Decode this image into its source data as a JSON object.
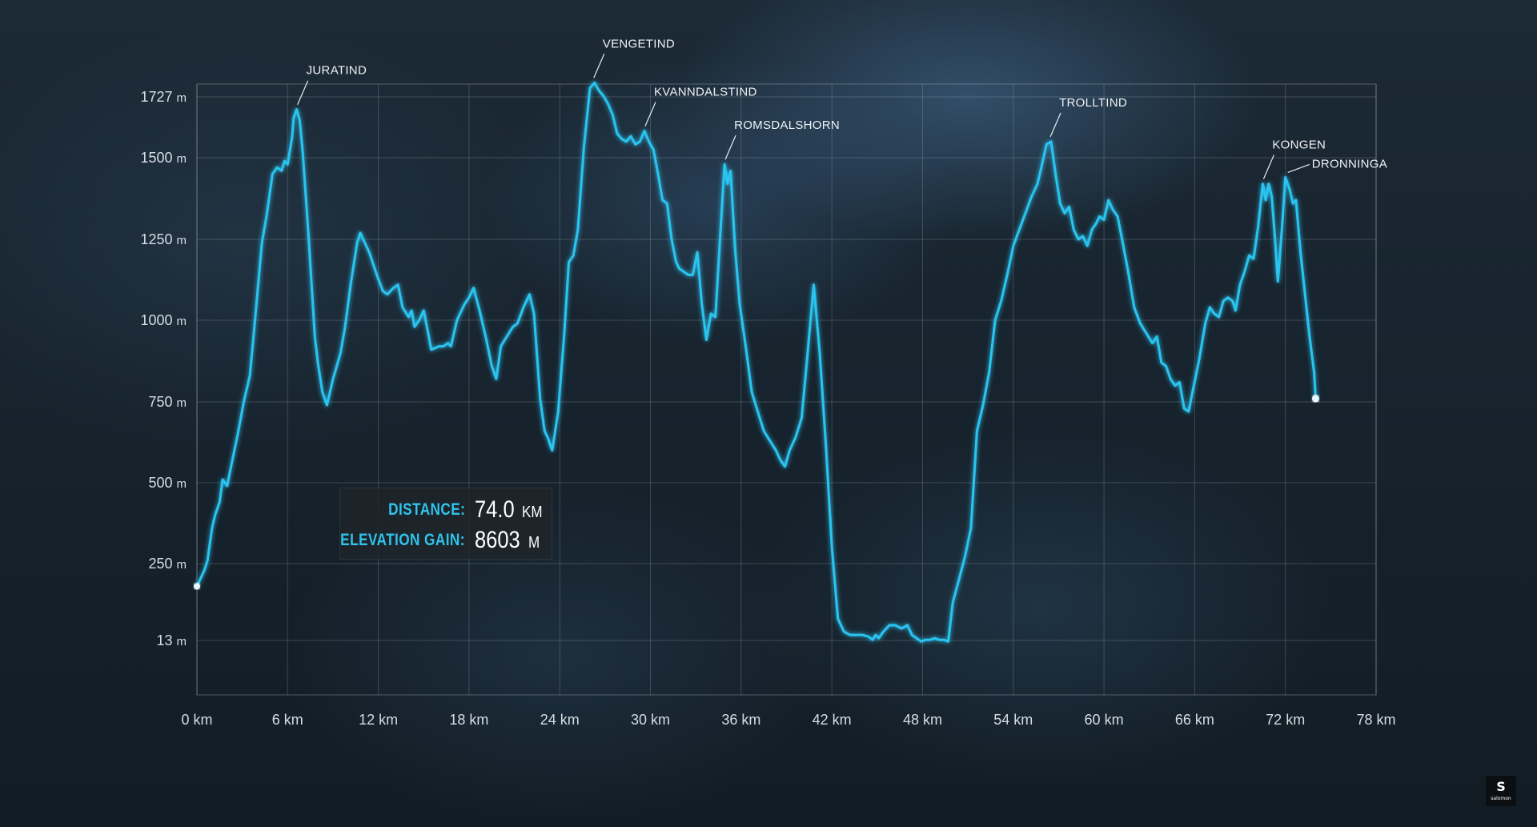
{
  "chart_data": {
    "type": "line",
    "title": "",
    "xlabel": "",
    "ylabel": "",
    "x_ticks": [
      "0 km",
      "6 km",
      "12 km",
      "18 km",
      "24 km",
      "30 km",
      "36 km",
      "42 km",
      "48 km",
      "54 km",
      "60 km",
      "66 km",
      "72 km",
      "78 km"
    ],
    "y_ticks": [
      {
        "value": 1727,
        "num": "1727",
        "unit": "m"
      },
      {
        "value": 1500,
        "num": "1500",
        "unit": "m"
      },
      {
        "value": 1250,
        "num": "1250",
        "unit": "m"
      },
      {
        "value": 1000,
        "num": "1000",
        "unit": "m"
      },
      {
        "value": 750,
        "num": "750",
        "unit": "m"
      },
      {
        "value": 500,
        "num": "500",
        "unit": "m"
      },
      {
        "value": 250,
        "num": "250",
        "unit": "m"
      },
      {
        "value": 13,
        "num": "13",
        "unit": "m"
      }
    ],
    "grid": true,
    "line_color": "#2cc4f0",
    "series": [
      {
        "name": "",
        "points": [
          [
            0,
            180
          ],
          [
            0.5,
            230
          ],
          [
            0.7,
            260
          ],
          [
            1.0,
            360
          ],
          [
            1.2,
            400
          ],
          [
            1.5,
            440
          ],
          [
            1.7,
            510
          ],
          [
            2.0,
            490
          ],
          [
            2.3,
            560
          ],
          [
            2.7,
            650
          ],
          [
            3.1,
            750
          ],
          [
            3.5,
            830
          ],
          [
            3.8,
            980
          ],
          [
            4.3,
            1240
          ],
          [
            4.6,
            1320
          ],
          [
            5.0,
            1450
          ],
          [
            5.3,
            1470
          ],
          [
            5.6,
            1460
          ],
          [
            5.8,
            1490
          ],
          [
            6.0,
            1480
          ],
          [
            6.3,
            1580
          ],
          [
            6.4,
            1650
          ],
          [
            6.6,
            1680
          ],
          [
            6.8,
            1640
          ],
          [
            7.0,
            1520
          ],
          [
            7.4,
            1250
          ],
          [
            7.8,
            950
          ],
          [
            8.0,
            870
          ],
          [
            8.3,
            780
          ],
          [
            8.6,
            740
          ],
          [
            9.0,
            820
          ],
          [
            9.5,
            900
          ],
          [
            9.8,
            980
          ],
          [
            10.2,
            1120
          ],
          [
            10.6,
            1240
          ],
          [
            10.8,
            1270
          ],
          [
            11.0,
            1250
          ],
          [
            11.4,
            1210
          ],
          [
            11.9,
            1140
          ],
          [
            12.3,
            1090
          ],
          [
            12.6,
            1080
          ],
          [
            13.0,
            1100
          ],
          [
            13.3,
            1110
          ],
          [
            13.6,
            1040
          ],
          [
            14.0,
            1010
          ],
          [
            14.2,
            1030
          ],
          [
            14.4,
            980
          ],
          [
            14.7,
            1000
          ],
          [
            15.0,
            1030
          ],
          [
            15.3,
            960
          ],
          [
            15.5,
            910
          ],
          [
            16.0,
            920
          ],
          [
            16.3,
            920
          ],
          [
            16.6,
            930
          ],
          [
            16.8,
            920
          ],
          [
            17.2,
            1000
          ],
          [
            17.7,
            1050
          ],
          [
            18.0,
            1070
          ],
          [
            18.3,
            1100
          ],
          [
            18.7,
            1030
          ],
          [
            19.1,
            950
          ],
          [
            19.5,
            860
          ],
          [
            19.8,
            820
          ],
          [
            20.1,
            920
          ],
          [
            20.5,
            950
          ],
          [
            20.9,
            980
          ],
          [
            21.2,
            990
          ],
          [
            21.6,
            1040
          ],
          [
            22.0,
            1080
          ],
          [
            22.3,
            1020
          ],
          [
            22.7,
            760
          ],
          [
            23.0,
            660
          ],
          [
            23.2,
            640
          ],
          [
            23.5,
            600
          ],
          [
            23.9,
            720
          ],
          [
            24.3,
            960
          ],
          [
            24.6,
            1180
          ],
          [
            24.9,
            1200
          ],
          [
            25.2,
            1280
          ],
          [
            25.6,
            1540
          ],
          [
            26.0,
            1760
          ],
          [
            26.3,
            1780
          ],
          [
            26.6,
            1750
          ],
          [
            26.9,
            1730
          ],
          [
            27.2,
            1700
          ],
          [
            27.5,
            1660
          ],
          [
            27.8,
            1590
          ],
          [
            28.1,
            1570
          ],
          [
            28.4,
            1560
          ],
          [
            28.7,
            1580
          ],
          [
            29.0,
            1550
          ],
          [
            29.3,
            1560
          ],
          [
            29.6,
            1600
          ],
          [
            29.9,
            1560
          ],
          [
            30.2,
            1530
          ],
          [
            30.5,
            1450
          ],
          [
            30.8,
            1370
          ],
          [
            31.1,
            1360
          ],
          [
            31.4,
            1250
          ],
          [
            31.7,
            1180
          ],
          [
            31.9,
            1160
          ],
          [
            32.2,
            1150
          ],
          [
            32.5,
            1140
          ],
          [
            32.8,
            1140
          ],
          [
            33.1,
            1210
          ],
          [
            33.4,
            1050
          ],
          [
            33.7,
            940
          ],
          [
            34.0,
            1020
          ],
          [
            34.3,
            1010
          ],
          [
            34.6,
            1250
          ],
          [
            34.9,
            1480
          ],
          [
            35.1,
            1420
          ],
          [
            35.3,
            1460
          ],
          [
            35.6,
            1220
          ],
          [
            35.9,
            1050
          ],
          [
            36.3,
            920
          ],
          [
            36.7,
            780
          ],
          [
            37.1,
            720
          ],
          [
            37.5,
            660
          ],
          [
            37.9,
            630
          ],
          [
            38.3,
            600
          ],
          [
            38.6,
            570
          ],
          [
            38.9,
            550
          ],
          [
            39.2,
            600
          ],
          [
            39.6,
            640
          ],
          [
            40.0,
            700
          ],
          [
            40.4,
            900
          ],
          [
            40.8,
            1110
          ],
          [
            41.2,
            900
          ],
          [
            41.6,
            620
          ],
          [
            42.0,
            300
          ],
          [
            42.4,
            80
          ],
          [
            42.8,
            40
          ],
          [
            43.2,
            30
          ],
          [
            43.6,
            30
          ],
          [
            44.0,
            30
          ],
          [
            44.4,
            25
          ],
          [
            44.7,
            15
          ],
          [
            44.9,
            30
          ],
          [
            45.1,
            20
          ],
          [
            45.4,
            40
          ],
          [
            45.8,
            60
          ],
          [
            46.2,
            60
          ],
          [
            46.6,
            50
          ],
          [
            47.0,
            60
          ],
          [
            47.3,
            30
          ],
          [
            47.6,
            20
          ],
          [
            47.9,
            10
          ],
          [
            48.2,
            15
          ],
          [
            48.5,
            15
          ],
          [
            48.8,
            20
          ],
          [
            49.1,
            15
          ],
          [
            49.4,
            15
          ],
          [
            49.7,
            10
          ],
          [
            50.0,
            130
          ],
          [
            50.4,
            200
          ],
          [
            50.8,
            270
          ],
          [
            51.2,
            360
          ],
          [
            51.6,
            660
          ],
          [
            52.0,
            740
          ],
          [
            52.4,
            840
          ],
          [
            52.8,
            1000
          ],
          [
            53.2,
            1060
          ],
          [
            53.6,
            1140
          ],
          [
            54.0,
            1230
          ],
          [
            54.4,
            1280
          ],
          [
            54.8,
            1330
          ],
          [
            55.2,
            1380
          ],
          [
            55.6,
            1420
          ],
          [
            55.9,
            1480
          ],
          [
            56.2,
            1550
          ],
          [
            56.5,
            1560
          ],
          [
            56.8,
            1450
          ],
          [
            57.1,
            1360
          ],
          [
            57.4,
            1330
          ],
          [
            57.7,
            1350
          ],
          [
            58.0,
            1280
          ],
          [
            58.3,
            1250
          ],
          [
            58.6,
            1260
          ],
          [
            58.9,
            1230
          ],
          [
            59.2,
            1280
          ],
          [
            59.5,
            1300
          ],
          [
            59.7,
            1320
          ],
          [
            60.0,
            1310
          ],
          [
            60.3,
            1370
          ],
          [
            60.6,
            1340
          ],
          [
            60.9,
            1320
          ],
          [
            61.2,
            1250
          ],
          [
            61.6,
            1150
          ],
          [
            62.0,
            1040
          ],
          [
            62.4,
            990
          ],
          [
            62.8,
            960
          ],
          [
            63.2,
            930
          ],
          [
            63.5,
            950
          ],
          [
            63.8,
            870
          ],
          [
            64.1,
            860
          ],
          [
            64.4,
            820
          ],
          [
            64.7,
            800
          ],
          [
            65.0,
            810
          ],
          [
            65.3,
            730
          ],
          [
            65.6,
            720
          ],
          [
            65.9,
            790
          ],
          [
            66.3,
            880
          ],
          [
            66.7,
            990
          ],
          [
            67.0,
            1040
          ],
          [
            67.3,
            1020
          ],
          [
            67.6,
            1010
          ],
          [
            67.9,
            1060
          ],
          [
            68.2,
            1070
          ],
          [
            68.5,
            1060
          ],
          [
            68.7,
            1030
          ],
          [
            69.0,
            1110
          ],
          [
            69.3,
            1150
          ],
          [
            69.6,
            1200
          ],
          [
            69.9,
            1190
          ],
          [
            70.2,
            1290
          ],
          [
            70.5,
            1420
          ],
          [
            70.7,
            1370
          ],
          [
            70.9,
            1420
          ],
          [
            71.1,
            1380
          ],
          [
            71.3,
            1260
          ],
          [
            71.5,
            1120
          ],
          [
            71.8,
            1300
          ],
          [
            72.0,
            1440
          ],
          [
            72.3,
            1400
          ],
          [
            72.5,
            1360
          ],
          [
            72.7,
            1370
          ],
          [
            73.0,
            1210
          ],
          [
            73.3,
            1080
          ],
          [
            73.6,
            950
          ],
          [
            73.9,
            840
          ],
          [
            74.0,
            760
          ]
        ]
      }
    ],
    "peaks": [
      {
        "label": "JURATIND",
        "x": 6.6,
        "y": 1680
      },
      {
        "label": "VENGETIND",
        "x": 26.2,
        "y": 1780
      },
      {
        "label": "KVANNDALSTIND",
        "x": 29.6,
        "y": 1600
      },
      {
        "label": "ROMSDALSHORN",
        "x": 34.9,
        "y": 1480
      },
      {
        "label": "TROLLTIND",
        "x": 56.4,
        "y": 1560
      },
      {
        "label": "KONGEN",
        "x": 70.5,
        "y": 1420
      },
      {
        "label": "DRONNINGA",
        "x": 72.0,
        "y": 1440
      }
    ]
  },
  "info": {
    "distance_label": "DISTANCE:",
    "distance_value": "74.0",
    "distance_unit": "KM",
    "gain_label": "ELEVATION GAIN:",
    "gain_value": "8603",
    "gain_unit": "M"
  },
  "logo": {
    "letter": "S",
    "word": "salomon"
  }
}
